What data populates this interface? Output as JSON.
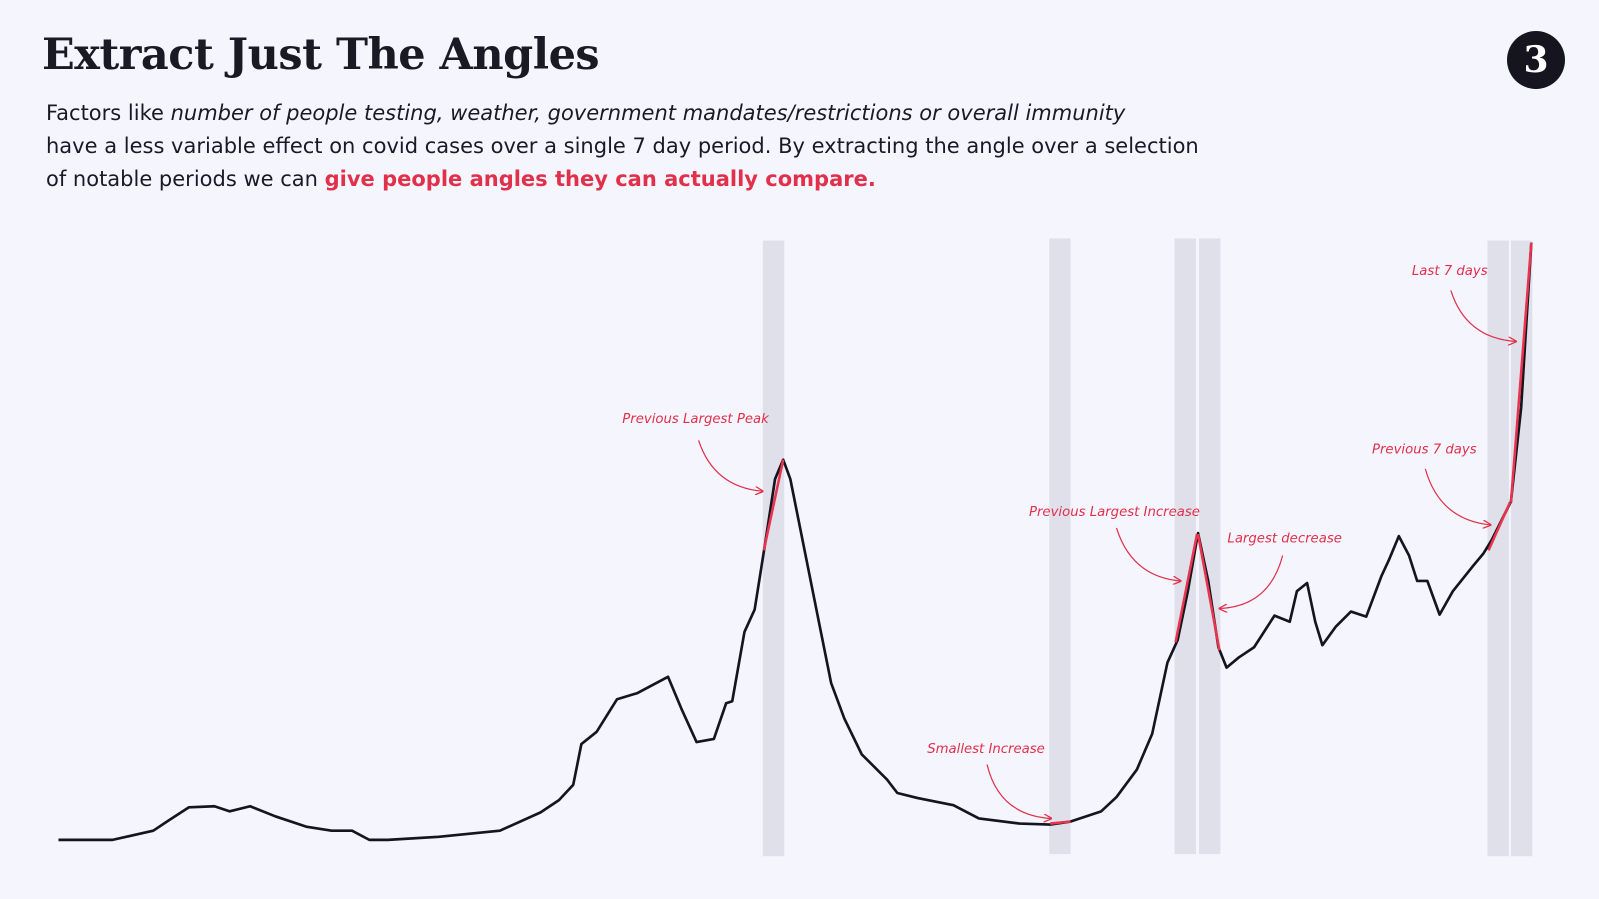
{
  "header": {
    "title": "Extract Just The Angles",
    "badge": "3"
  },
  "intro": {
    "lead": "Factors like ",
    "italic": "number of people testing, weather, government mandates/restrictions or overall immunity",
    "body": "have a less variable effect on covid cases over a single 7 day period. By extracting the angle over a selection of notable periods we can ",
    "highlight": "give people angles they can actually compare."
  },
  "annotations": [
    "Previous Largest Peak",
    "Smallest Increase",
    "Previous Largest Increase",
    "Largest decrease",
    "Previous 7 days",
    "Last 7 days"
  ]
}
